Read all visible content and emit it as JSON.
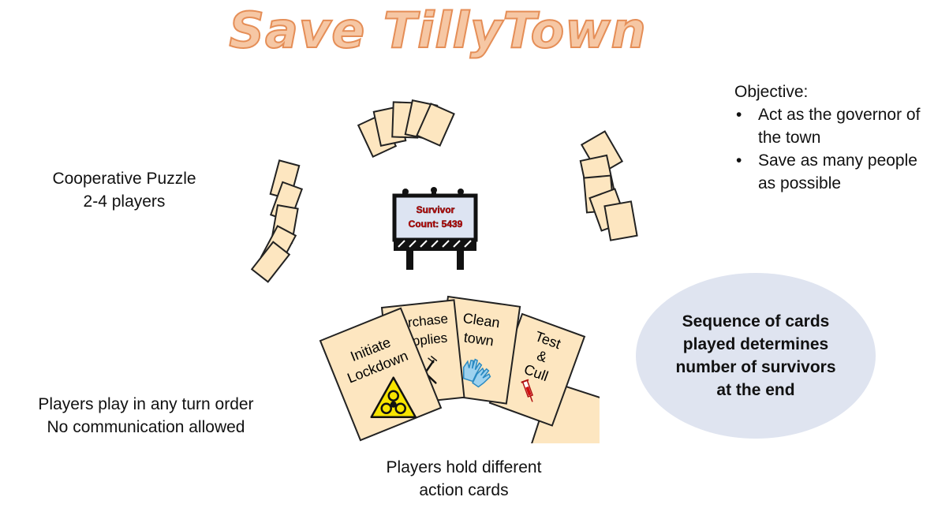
{
  "title": "Save TillyTown",
  "left_info": {
    "line1": "Cooperative Puzzle",
    "line2": "2-4 players"
  },
  "objective": {
    "heading": "Objective:",
    "items": [
      "Act as the governor of the town",
      "Save as many people as possible"
    ]
  },
  "billboard": {
    "line1": "Survivor",
    "line2": "Count: 5439",
    "text_color": "#d01010"
  },
  "turn_info": {
    "line1": "Players play in any turn order",
    "line2": "No communication allowed"
  },
  "hand_caption": {
    "line1": "Players hold different",
    "line2": "action cards"
  },
  "sequence_note": {
    "line1": "Sequence of cards",
    "line2": "played determines",
    "line3": "number of survivors",
    "line4": "at the end"
  },
  "action_cards": [
    {
      "line1": "Initiate",
      "line2": "Lockdown",
      "icon": "biohazard-icon"
    },
    {
      "line1": "Purchase",
      "line2": "Supplies",
      "icon": "fork-knife-icon"
    },
    {
      "line1": "Clean",
      "line2": "town",
      "icon": "gloves-icon"
    },
    {
      "line1": "Test",
      "line2": "&",
      "line3": "Cull",
      "icon": "syringe-icon"
    }
  ],
  "colors": {
    "card": "#fde6c0",
    "title_fill": "#f6c7a4",
    "title_stroke": "#e58e57",
    "ellipse": "#dfe4f0",
    "hazard": "#f7e400"
  }
}
